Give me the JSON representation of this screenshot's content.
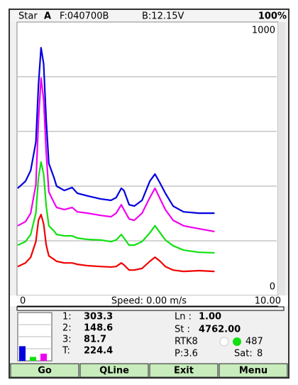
{
  "status": {
    "star_label": "Star",
    "star_value": "A",
    "file": "F:040700B",
    "battery": "B:12.15V",
    "percent": "100%"
  },
  "chart_data": {
    "type": "line",
    "x": [
      0,
      0.3,
      0.5,
      0.7,
      0.8,
      0.9,
      1.0,
      1.1,
      1.2,
      1.4,
      1.5,
      1.8,
      2.1,
      2.3,
      2.7,
      3.2,
      3.6,
      3.8,
      4.0,
      4.1,
      4.3,
      4.5,
      4.8,
      5.1,
      5.3,
      5.5,
      5.7,
      6.0,
      6.4,
      7.0,
      7.6
    ],
    "series": [
      {
        "color": "#0000e0",
        "values": [
          392,
          418,
          457,
          561,
          769,
          906,
          847,
          639,
          483,
          431,
          400,
          384,
          395,
          374,
          364,
          353,
          348,
          358,
          392,
          384,
          332,
          327,
          348,
          418,
          444,
          410,
          374,
          327,
          306,
          301,
          301
        ]
      },
      {
        "color": "#f000f0",
        "values": [
          255,
          270,
          301,
          405,
          639,
          795,
          717,
          522,
          379,
          340,
          322,
          314,
          322,
          306,
          301,
          293,
          288,
          301,
          332,
          314,
          280,
          275,
          301,
          358,
          392,
          353,
          314,
          275,
          255,
          244,
          234
        ]
      },
      {
        "color": "#10e010",
        "values": [
          184,
          197,
          223,
          301,
          431,
          488,
          444,
          327,
          255,
          236,
          223,
          218,
          218,
          210,
          205,
          203,
          197,
          203,
          223,
          210,
          184,
          184,
          197,
          229,
          255,
          229,
          203,
          182,
          166,
          158,
          156
        ]
      },
      {
        "color": "#f00000",
        "values": [
          106,
          119,
          140,
          197,
          275,
          296,
          262,
          184,
          145,
          132,
          125,
          119,
          119,
          114,
          109,
          106,
          104,
          106,
          119,
          112,
          93,
          93,
          99,
          125,
          140,
          125,
          106,
          93,
          88,
          91,
          88
        ]
      }
    ],
    "xlim": [
      0,
      10
    ],
    "xticks": [
      0,
      {
        "value": 10,
        "label": "10.00"
      }
    ],
    "ylim": [
      0,
      1000
    ],
    "yticks": [
      0,
      1000
    ],
    "grid": [
      200,
      400,
      600,
      800
    ],
    "x_label": "Speed: 0.00 m/s"
  },
  "readings": [
    {
      "label": "1:",
      "value": 303.3
    },
    {
      "label": "2:",
      "value": 148.6
    },
    {
      "label": "3:",
      "value": 81.7
    },
    {
      "label": "T:",
      "value": 224.4
    }
  ],
  "info": {
    "ln_label": "Ln :",
    "ln_value": "1.00",
    "st_label": "St :",
    "st_value": "4762.00",
    "rtk": "RTK8",
    "count": "487",
    "p": "P:3.6",
    "sat_label": "Sat:",
    "sat_value": "8"
  },
  "buttons": [
    "Go",
    "QLine",
    "Exit",
    "Menu"
  ]
}
